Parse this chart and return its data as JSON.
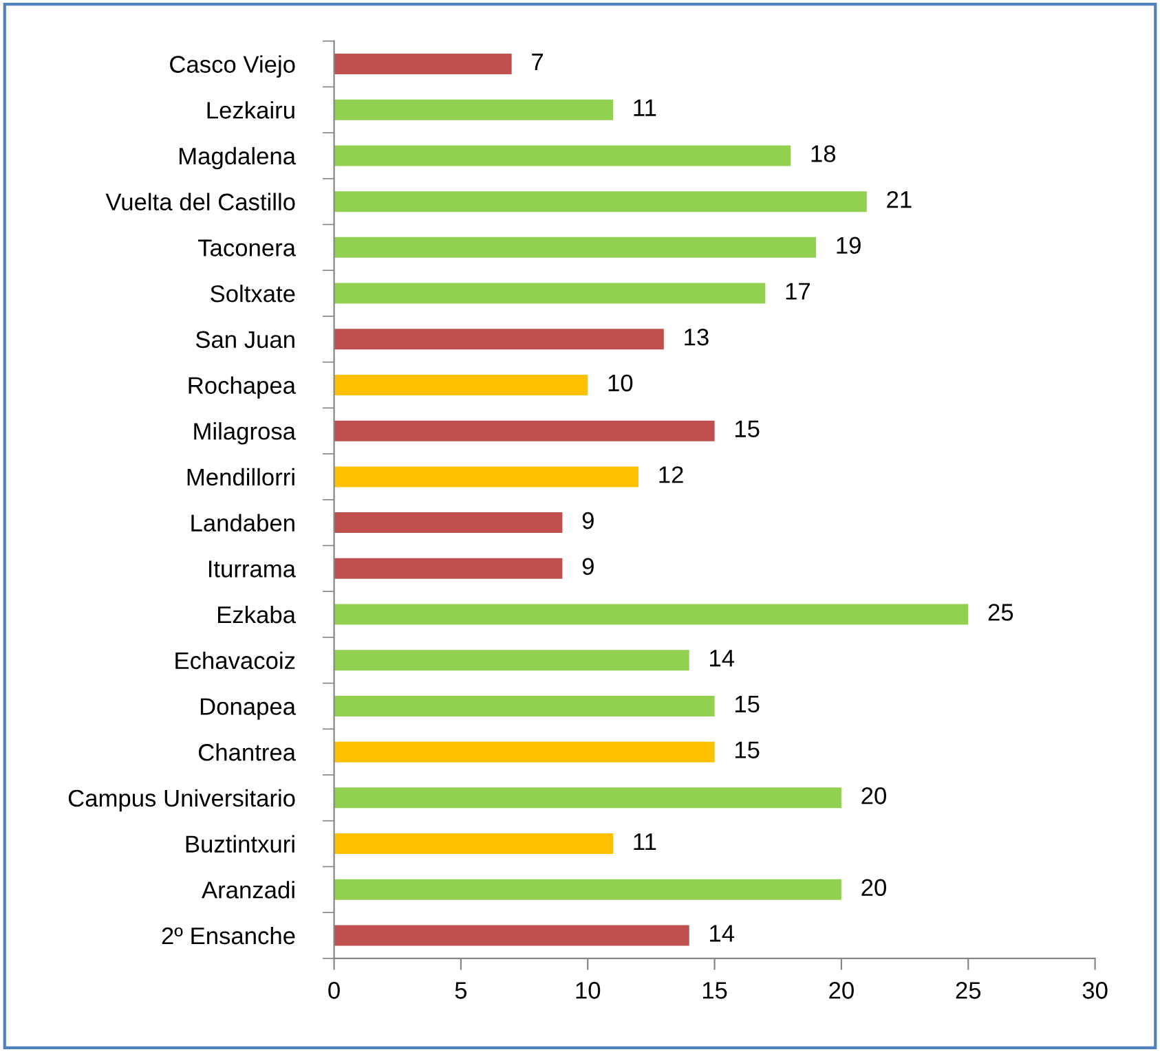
{
  "chart_data": {
    "type": "bar",
    "orientation": "horizontal",
    "categories": [
      "Casco Viejo",
      "Lezkairu",
      "Magdalena",
      "Vuelta del Castillo",
      "Taconera",
      "Soltxate",
      "San Juan",
      "Rochapea",
      "Milagrosa",
      "Mendillorri",
      "Landaben",
      "Iturrama",
      "Ezkaba",
      "Echavacoiz",
      "Donapea",
      "Chantrea",
      "Campus Universitario",
      "Buztintxuri",
      "Aranzadi",
      "2º Ensanche"
    ],
    "values": [
      7,
      11,
      18,
      21,
      19,
      17,
      13,
      10,
      15,
      12,
      9,
      9,
      25,
      14,
      15,
      15,
      20,
      11,
      20,
      14
    ],
    "colors": [
      "#c0504d",
      "#92d050",
      "#92d050",
      "#92d050",
      "#92d050",
      "#92d050",
      "#c0504d",
      "#ffc000",
      "#c0504d",
      "#ffc000",
      "#c0504d",
      "#c0504d",
      "#92d050",
      "#92d050",
      "#92d050",
      "#ffc000",
      "#92d050",
      "#ffc000",
      "#92d050",
      "#c0504d"
    ],
    "xlim": [
      0,
      30
    ],
    "xticks": [
      0,
      5,
      10,
      15,
      20,
      25,
      30
    ],
    "data_labels": true,
    "grid": false,
    "legend": false
  }
}
